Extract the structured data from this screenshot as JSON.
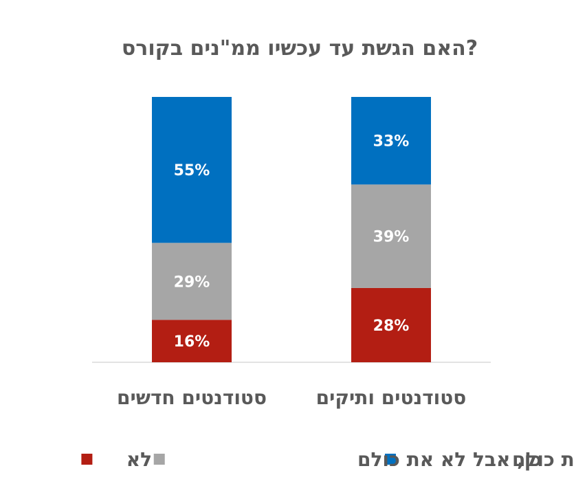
{
  "chart_data": {
    "type": "bar",
    "stacked": true,
    "percent": true,
    "title": "האם הגשת עד עכשיו ממ\"נים בקורס?",
    "xlabel": "",
    "ylabel": "",
    "ylim": [
      0,
      100
    ],
    "grid": false,
    "legend_position": "bottom",
    "direction": "rtl",
    "categories": [
      "סטודנטים ותיקים",
      "סטודנטים חדשים"
    ],
    "series": [
      {
        "name": "לא",
        "color": "#B31E13",
        "values": [
          28,
          16
        ],
        "labels": [
          "28%",
          "16%"
        ]
      },
      {
        "name": "כן, אבל לא את כולם",
        "color": "#A6A6A6",
        "values": [
          39,
          29
        ],
        "labels": [
          "39%",
          "29%"
        ]
      },
      {
        "name": "כן, את כולם",
        "color": "#0070C0",
        "values": [
          33,
          55
        ],
        "labels": [
          "33%",
          "55%"
        ]
      }
    ]
  }
}
